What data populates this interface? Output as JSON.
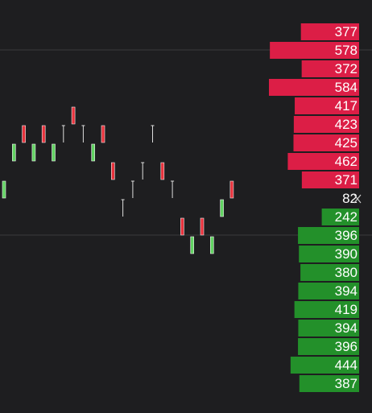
{
  "order_book": {
    "asks": [
      377,
      578,
      372,
      584,
      417,
      423,
      425,
      462,
      371
    ],
    "last": 82,
    "bids": [
      242,
      396,
      390,
      380,
      394,
      419,
      394,
      396,
      444,
      387
    ],
    "ask_color": "#dc1e46",
    "bid_color": "#23902a"
  },
  "candles": [
    {
      "low": 3,
      "high": 4,
      "color": "#62d462"
    },
    {
      "low": 5,
      "high": 6,
      "color": "#62d462"
    },
    {
      "low": 6,
      "high": 7,
      "color": "#e8323c"
    },
    {
      "low": 5,
      "high": 6,
      "color": "#62d462"
    },
    {
      "low": 6,
      "high": 7,
      "color": "#e8323c"
    },
    {
      "low": 5,
      "high": 6,
      "color": "#62d462"
    },
    {
      "low": 6,
      "high": 7,
      "color": "#dddddd"
    },
    {
      "low": 7,
      "high": 8,
      "color": "#e8323c"
    },
    {
      "low": 6,
      "high": 7,
      "color": "#dddddd"
    },
    {
      "low": 5,
      "high": 6,
      "color": "#62d462"
    },
    {
      "low": 6,
      "high": 7,
      "color": "#e8323c"
    },
    {
      "low": 4,
      "high": 5,
      "color": "#e8323c"
    },
    {
      "low": 2,
      "high": 3,
      "color": "#dddddd"
    },
    {
      "low": 3,
      "high": 4,
      "color": "#dddddd"
    },
    {
      "low": 4,
      "high": 5,
      "color": "#dddddd"
    },
    {
      "low": 6,
      "high": 7,
      "color": "#dddddd"
    },
    {
      "low": 4,
      "high": 5,
      "color": "#e8323c"
    },
    {
      "low": 3,
      "high": 4,
      "color": "#dddddd"
    },
    {
      "low": 1,
      "high": 2,
      "color": "#e8323c"
    },
    {
      "low": 0,
      "high": 1,
      "color": "#62d462"
    },
    {
      "low": 1,
      "high": 2,
      "color": "#e8323c"
    },
    {
      "low": 0,
      "high": 1,
      "color": "#62d462"
    },
    {
      "low": 2,
      "high": 3,
      "color": "#62d462"
    },
    {
      "low": 3,
      "high": 4,
      "color": "#e8323c"
    }
  ]
}
